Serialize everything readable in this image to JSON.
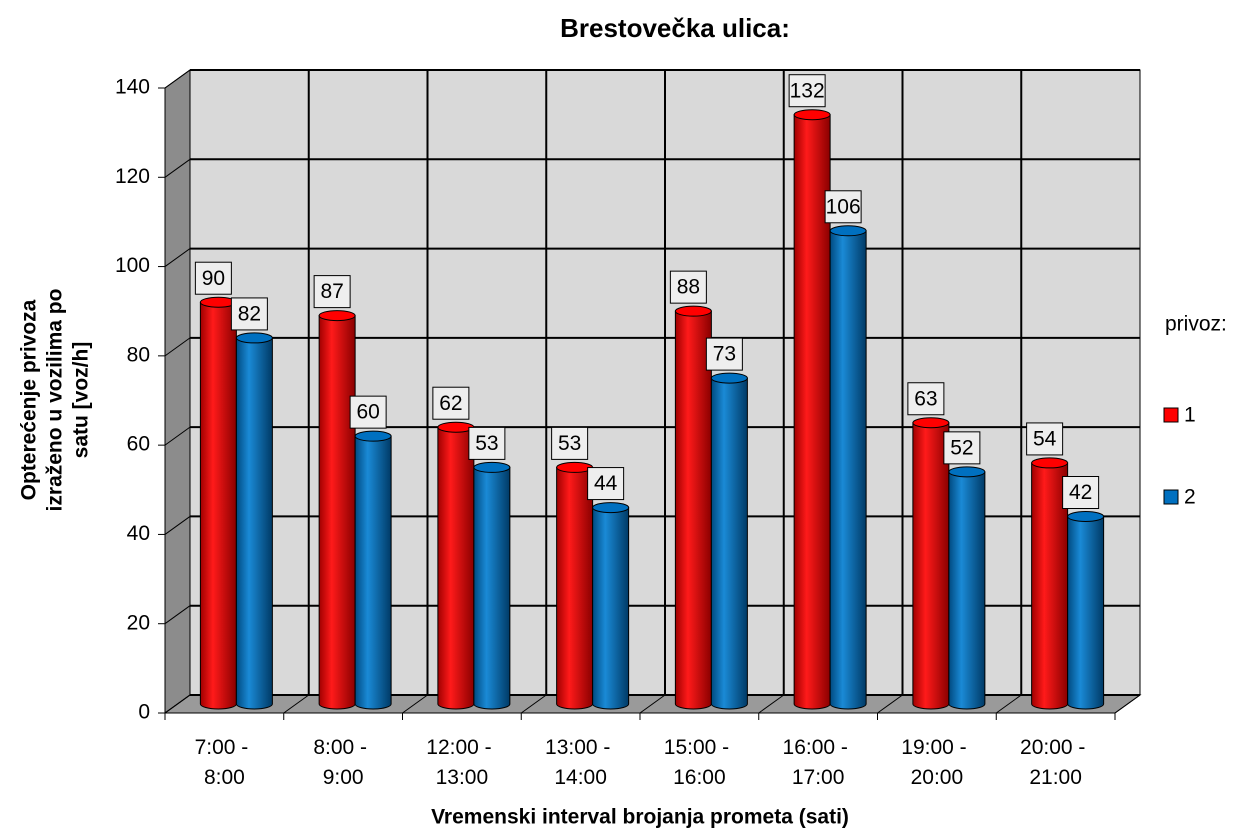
{
  "chart_data": {
    "type": "bar3d",
    "title": "Brestovečka ulica:",
    "x_label": "Vremenski interval brojanja prometa (sati)",
    "y_label": [
      "Opterećenje privoza",
      "izraženo u vozilima po",
      "satu [voz/h]"
    ],
    "categories": [
      "7:00 - 8:00",
      "8:00 - 9:00",
      "12:00 - 13:00",
      "13:00 - 14:00",
      "15:00 - 16:00",
      "16:00 - 17:00",
      "19:00 - 20:00",
      "20:00 - 21:00"
    ],
    "series": [
      {
        "name": "1",
        "color": "#ff0000",
        "values": [
          90,
          87,
          62,
          53,
          88,
          132,
          63,
          54
        ]
      },
      {
        "name": "2",
        "color": "#0070c0",
        "values": [
          82,
          60,
          53,
          44,
          73,
          106,
          52,
          42
        ]
      }
    ],
    "legend_title": "privoz:",
    "legend": "right",
    "ylim": [
      0,
      140
    ],
    "yticks": [
      0,
      20,
      40,
      60,
      80,
      100,
      120,
      140
    ],
    "grid": true
  }
}
